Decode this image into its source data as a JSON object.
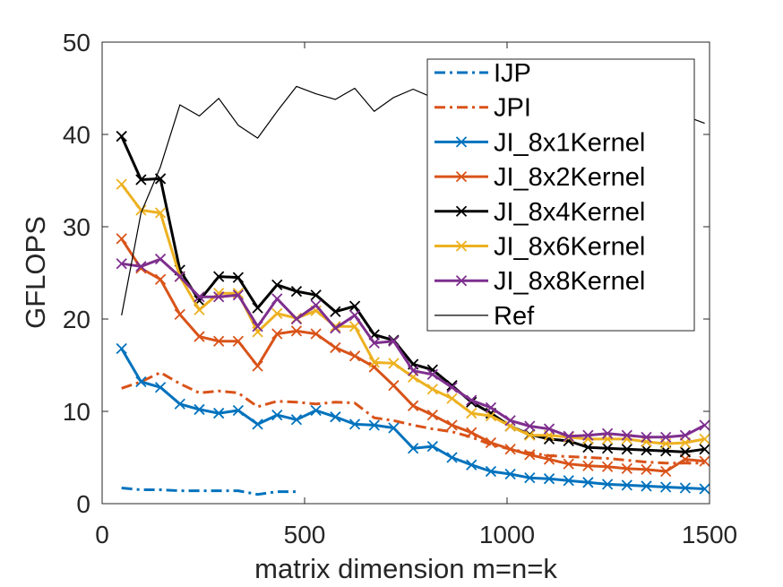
{
  "chart_data": {
    "type": "line",
    "title": "",
    "xlabel": "matrix dimension m=n=k",
    "ylabel": "GFLOPS",
    "xlim": [
      0,
      1500
    ],
    "ylim": [
      0,
      50
    ],
    "xticks": [
      0,
      500,
      1000,
      1500
    ],
    "yticks": [
      0,
      10,
      20,
      30,
      40,
      50
    ],
    "grid": false,
    "legend_position": "top-right",
    "series": [
      {
        "name": "IJP",
        "color": "#0072BD",
        "style": "dashdot",
        "marker": "none",
        "x": [
          48,
          96,
          144,
          192,
          240,
          288,
          336,
          384,
          432,
          480
        ],
        "y": [
          1.7,
          1.5,
          1.5,
          1.4,
          1.4,
          1.4,
          1.4,
          1.0,
          1.3,
          1.3
        ]
      },
      {
        "name": "JPI",
        "color": "#D95319",
        "style": "dashdot",
        "marker": "none",
        "x": [
          48,
          96,
          144,
          192,
          240,
          288,
          336,
          384,
          432,
          480,
          528,
          576,
          624,
          672,
          720,
          768,
          816,
          864,
          912,
          960,
          1008,
          1056,
          1104,
          1152,
          1200,
          1248,
          1296,
          1344,
          1392,
          1440,
          1488
        ],
        "y": [
          12.5,
          13.2,
          14.2,
          13.0,
          12.0,
          12.2,
          12.0,
          10.5,
          11.1,
          11.0,
          10.8,
          11.0,
          10.9,
          9.3,
          9.0,
          8.5,
          8.1,
          7.8,
          7.2,
          6.4,
          5.9,
          5.5,
          5.2,
          5.1,
          5.0,
          4.9,
          4.7,
          4.5,
          4.4,
          4.4,
          4.4
        ]
      },
      {
        "name": "JI_8x1Kernel",
        "color": "#0072BD",
        "style": "solid",
        "marker": "x",
        "x": [
          48,
          96,
          144,
          192,
          240,
          288,
          336,
          384,
          432,
          480,
          528,
          576,
          624,
          672,
          720,
          768,
          816,
          864,
          912,
          960,
          1008,
          1056,
          1104,
          1152,
          1200,
          1248,
          1296,
          1344,
          1392,
          1440,
          1488
        ],
        "y": [
          16.8,
          13.2,
          12.6,
          10.8,
          10.2,
          9.8,
          10.1,
          8.6,
          9.6,
          9.1,
          10.1,
          9.4,
          8.6,
          8.5,
          8.2,
          6.0,
          6.2,
          5.0,
          4.2,
          3.5,
          3.2,
          2.8,
          2.7,
          2.5,
          2.3,
          2.1,
          2.0,
          1.9,
          1.8,
          1.7,
          1.6
        ]
      },
      {
        "name": "JI_8x2Kernel",
        "color": "#D95319",
        "style": "solid",
        "marker": "x",
        "x": [
          48,
          96,
          144,
          192,
          240,
          288,
          336,
          384,
          432,
          480,
          528,
          576,
          624,
          672,
          720,
          768,
          816,
          864,
          912,
          960,
          1008,
          1056,
          1104,
          1152,
          1200,
          1248,
          1296,
          1344,
          1392,
          1440,
          1488
        ],
        "y": [
          28.7,
          25.5,
          24.3,
          20.5,
          18.1,
          17.6,
          17.6,
          14.9,
          18.4,
          18.7,
          18.4,
          16.9,
          16.0,
          14.8,
          12.8,
          10.6,
          9.6,
          8.5,
          7.7,
          6.6,
          5.9,
          5.3,
          4.8,
          4.3,
          4.1,
          4.0,
          3.8,
          3.7,
          3.5,
          4.8,
          4.6
        ]
      },
      {
        "name": "JI_8x4Kernel",
        "color": "#000000",
        "style": "solid",
        "marker": "x",
        "x": [
          48,
          96,
          144,
          192,
          240,
          288,
          336,
          384,
          432,
          480,
          528,
          576,
          624,
          672,
          720,
          768,
          816,
          864,
          912,
          960,
          1008,
          1056,
          1104,
          1152,
          1200,
          1248,
          1296,
          1344,
          1392,
          1440,
          1488
        ],
        "y": [
          39.8,
          35.1,
          35.2,
          25.3,
          22.0,
          24.6,
          24.5,
          21.2,
          23.7,
          23.0,
          22.6,
          20.8,
          21.4,
          18.3,
          17.7,
          15.1,
          14.5,
          12.8,
          11.0,
          9.8,
          8.4,
          7.5,
          7.0,
          6.8,
          6.1,
          6.0,
          5.9,
          5.8,
          5.7,
          5.6,
          5.9
        ]
      },
      {
        "name": "JI_8x6Kernel",
        "color": "#EDB120",
        "style": "solid",
        "marker": "x",
        "x": [
          48,
          96,
          144,
          192,
          240,
          288,
          336,
          384,
          432,
          480,
          528,
          576,
          624,
          672,
          720,
          768,
          816,
          864,
          912,
          960,
          1008,
          1056,
          1104,
          1152,
          1200,
          1248,
          1296,
          1344,
          1392,
          1440,
          1488
        ],
        "y": [
          34.6,
          31.8,
          31.5,
          24.6,
          21.0,
          22.8,
          22.8,
          18.6,
          20.6,
          20.1,
          20.9,
          19.2,
          19.2,
          15.3,
          15.2,
          13.7,
          12.4,
          11.4,
          9.8,
          9.5,
          8.4,
          7.4,
          7.4,
          7.2,
          7.0,
          7.0,
          7.0,
          6.7,
          6.5,
          6.6,
          7.0
        ]
      },
      {
        "name": "JI_8x8Kernel",
        "color": "#7E2F8E",
        "style": "solid",
        "marker": "x",
        "x": [
          48,
          96,
          144,
          192,
          240,
          288,
          336,
          384,
          432,
          480,
          528,
          576,
          624,
          672,
          720,
          768,
          816,
          864,
          912,
          960,
          1008,
          1056,
          1104,
          1152,
          1200,
          1248,
          1296,
          1344,
          1392,
          1440,
          1488
        ],
        "y": [
          26.0,
          25.7,
          26.5,
          24.6,
          22.4,
          22.4,
          22.6,
          19.2,
          22.2,
          20.0,
          21.5,
          19.0,
          20.4,
          17.4,
          17.6,
          14.4,
          14.0,
          12.6,
          11.2,
          10.4,
          9.0,
          8.4,
          8.1,
          7.3,
          7.4,
          7.6,
          7.4,
          7.2,
          7.2,
          7.4,
          8.5
        ]
      },
      {
        "name": "Ref",
        "color": "#000000",
        "style": "solid",
        "marker": "none",
        "x": [
          48,
          96,
          144,
          192,
          240,
          288,
          336,
          384,
          432,
          480,
          528,
          576,
          624,
          672,
          720,
          768,
          816,
          864,
          912,
          960,
          1008,
          1056,
          1104,
          1152,
          1200,
          1248,
          1296,
          1344,
          1392,
          1440,
          1488
        ],
        "y": [
          20.4,
          31.5,
          36.5,
          43.2,
          42.0,
          43.9,
          41.0,
          39.6,
          42.5,
          45.2,
          44.4,
          43.8,
          45.0,
          42.5,
          44.0,
          44.9,
          44.0,
          45.0,
          44.1,
          44.6,
          45.0,
          44.8,
          45.2,
          44.5,
          44.0,
          44.5,
          43.8,
          43.5,
          43.0,
          42.0,
          41.2
        ]
      }
    ]
  }
}
